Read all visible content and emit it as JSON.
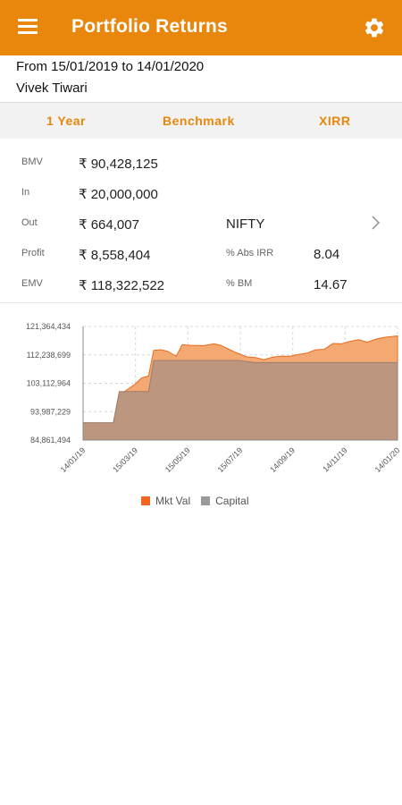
{
  "header": {
    "title": "Portfolio Returns",
    "menu_icon": "hamburger-menu-icon",
    "settings_icon": "gear-icon",
    "color": "#E8870C"
  },
  "info": {
    "period": "From 15/01/2019 to 14/01/2020",
    "user": "Vivek Tiwari"
  },
  "tabs": [
    {
      "label": "1 Year"
    },
    {
      "label": "Benchmark"
    },
    {
      "label": "XIRR"
    }
  ],
  "summary": {
    "bmv": {
      "label": "BMV",
      "value": "₹ 90,428,125"
    },
    "in": {
      "label": "In",
      "value": "₹ 20,000,000"
    },
    "out": {
      "label": "Out",
      "value": "₹ 664,007"
    },
    "profit": {
      "label": "Profit",
      "value": "₹ 8,558,404"
    },
    "emv": {
      "label": "EMV",
      "value": "₹ 118,322,522"
    },
    "benchmark": {
      "value": "NIFTY"
    },
    "abs_irr": {
      "label": "% Abs IRR",
      "value": "8.04"
    },
    "bm": {
      "label": "% BM",
      "value": "14.67"
    }
  },
  "chart_data": {
    "type": "area",
    "ylim": [
      84861494,
      121364434
    ],
    "yticks": [
      "121,364,434",
      "112,238,699",
      "103,112,964",
      "93,987,229",
      "84,861,494"
    ],
    "ytick_values": [
      121364434,
      112238699,
      103112964,
      93987229,
      84861494
    ],
    "xticks": [
      "14/01/19",
      "15/03/19",
      "15/05/19",
      "15/07/19",
      "14/09/19",
      "14/11/19",
      "14/01/20"
    ],
    "x_range_days": [
      0,
      365
    ],
    "series": [
      {
        "name": "Mkt Val",
        "color": "#F4A46A",
        "stroke": "#E86A1A",
        "points": [
          [
            0,
            90428125
          ],
          [
            20,
            90200000
          ],
          [
            28,
            89300000
          ],
          [
            35,
            89800000
          ],
          [
            42,
            99500000
          ],
          [
            50,
            100800000
          ],
          [
            60,
            102800000
          ],
          [
            68,
            104800000
          ],
          [
            76,
            105500000
          ],
          [
            82,
            113700000
          ],
          [
            90,
            113900000
          ],
          [
            98,
            113400000
          ],
          [
            108,
            111800000
          ],
          [
            115,
            115500000
          ],
          [
            125,
            115300000
          ],
          [
            140,
            115200000
          ],
          [
            152,
            115800000
          ],
          [
            160,
            115300000
          ],
          [
            165,
            114600000
          ],
          [
            178,
            112900000
          ],
          [
            190,
            111600000
          ],
          [
            200,
            111400000
          ],
          [
            210,
            110700000
          ],
          [
            220,
            111500000
          ],
          [
            230,
            111800000
          ],
          [
            240,
            111800000
          ],
          [
            250,
            112400000
          ],
          [
            260,
            112800000
          ],
          [
            270,
            113900000
          ],
          [
            280,
            114000000
          ],
          [
            290,
            115900000
          ],
          [
            300,
            115800000
          ],
          [
            310,
            116600000
          ],
          [
            320,
            117100000
          ],
          [
            330,
            116300000
          ],
          [
            340,
            117300000
          ],
          [
            350,
            117900000
          ],
          [
            365,
            118322522
          ]
        ]
      },
      {
        "name": "Capital",
        "color": "#B9957F",
        "stroke": "#9A7D6C",
        "points": [
          [
            0,
            90428125
          ],
          [
            35,
            90428125
          ],
          [
            42,
            100428125
          ],
          [
            76,
            100428125
          ],
          [
            82,
            110428125
          ],
          [
            180,
            110428125
          ],
          [
            200,
            109764118
          ],
          [
            365,
            109764118
          ]
        ]
      }
    ],
    "legend": [
      "Mkt Val",
      "Capital"
    ],
    "legend_colors": [
      "#F26522",
      "#999999"
    ],
    "grid": true
  }
}
